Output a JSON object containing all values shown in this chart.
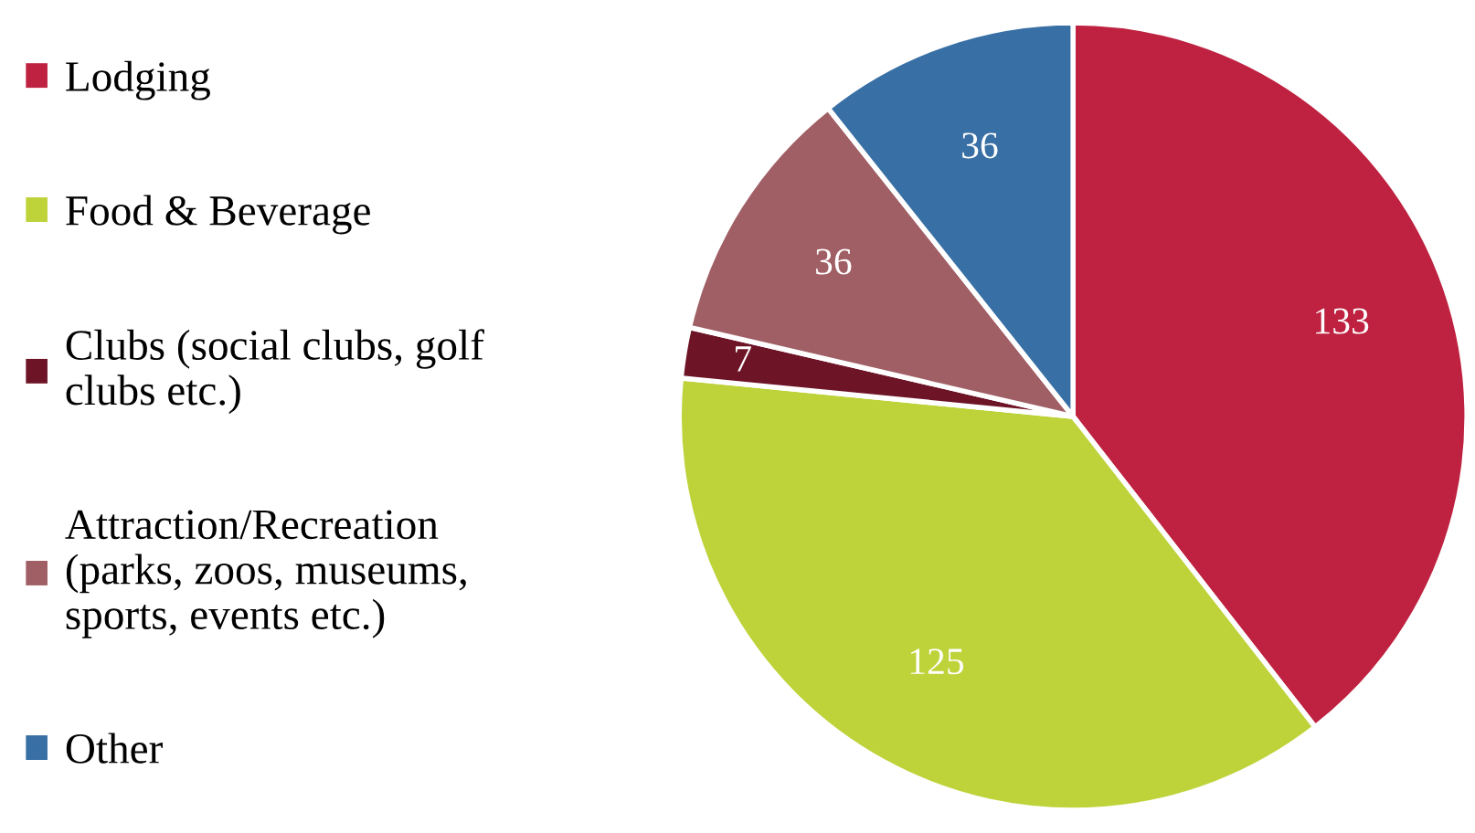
{
  "chart_data": {
    "type": "pie",
    "categories": [
      "Lodging",
      "Food & Beverage",
      "Clubs (social clubs, golf clubs etc.)",
      "Attraction/Recreation (parks, zoos, museums, sports, events etc.)",
      "Other"
    ],
    "values": [
      133,
      125,
      7,
      36,
      36
    ],
    "colors": [
      "#be2240",
      "#bed33a",
      "#6e1427",
      "#a05f65",
      "#386fa4"
    ],
    "data_labels": true,
    "legend": "left"
  }
}
